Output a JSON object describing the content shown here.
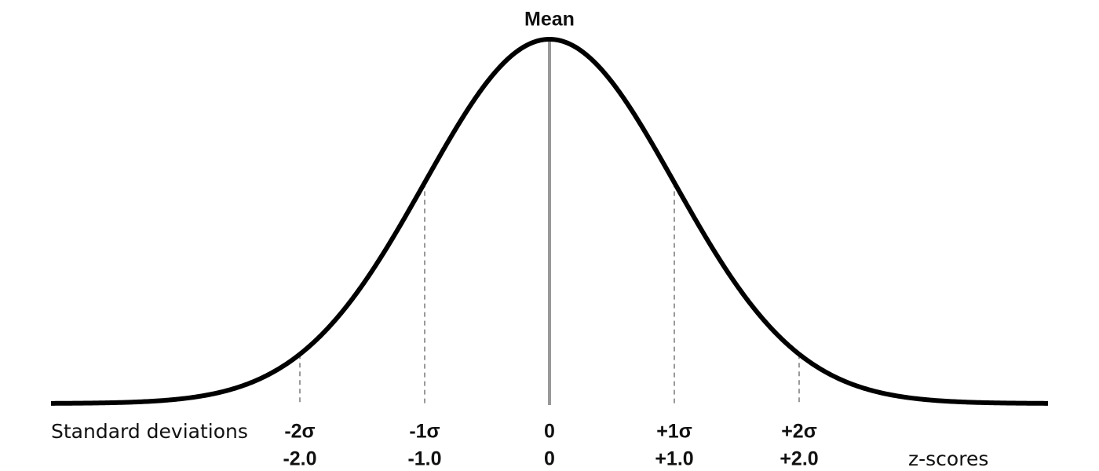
{
  "title": "Mean",
  "rows": [
    {
      "label": "Standard deviations",
      "ticks": [
        "-2σ",
        "-1σ",
        "0",
        "+1σ",
        "+2σ"
      ]
    },
    {
      "label": "z-scores",
      "ticks": [
        "-2.0",
        "-1.0",
        "0",
        "+1.0",
        "+2.0"
      ]
    }
  ]
}
